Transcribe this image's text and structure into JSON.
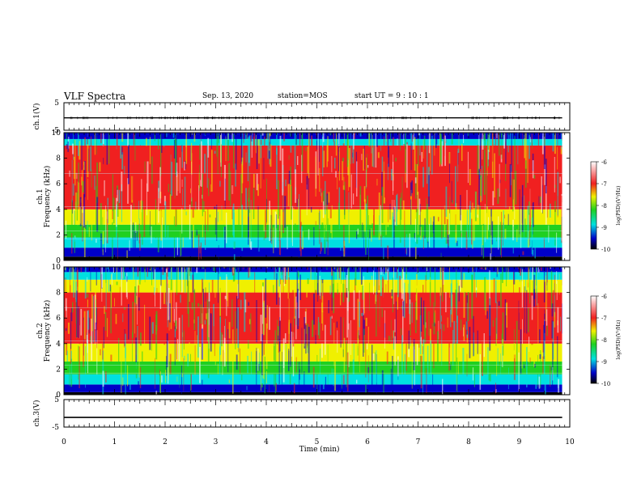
{
  "header": {
    "title": "VLF Spectra",
    "date": "Sep. 13, 2020",
    "station": "station=MOS",
    "start": "start  UT  =   9 : 10 : 1"
  },
  "colorbar_label": "log(PSD)(V²/Hz)",
  "colors": {
    "blue_band": "#0000c8",
    "cyan": "#00e0e0",
    "green": "#20d020",
    "yellow": "#f0f000",
    "red": "#f02020",
    "white": "#ffffff",
    "black": "#000000"
  },
  "chart_data": [
    {
      "type": "line",
      "name": "waveform-ch1",
      "ylabel": "ch.1(V)",
      "ylim": [
        -5,
        5
      ],
      "yticks": [
        -5,
        5
      ],
      "xlim": [
        0,
        10
      ],
      "x": [
        0,
        9.85
      ],
      "y": [
        -0.5,
        -0.5
      ]
    },
    {
      "type": "heatmap",
      "name": "spectrogram-ch1",
      "ylabel": "ch.1\nFrequency (kHz)",
      "ylim": [
        0,
        10
      ],
      "yticks": [
        0,
        2,
        4,
        6,
        8,
        10
      ],
      "xlim": [
        0,
        9.85
      ],
      "bands_khz": [
        [
          0,
          0.3,
          "black"
        ],
        [
          0.3,
          1.0,
          "blue"
        ],
        [
          1.0,
          1.8,
          "cyan"
        ],
        [
          1.8,
          2.8,
          "green"
        ],
        [
          2.8,
          4.0,
          "yellow"
        ],
        [
          4.0,
          9.0,
          "red"
        ],
        [
          9.0,
          9.5,
          "cyan"
        ],
        [
          9.5,
          10.0,
          "blue"
        ]
      ],
      "colorbar": {
        "min": -10,
        "max": -6,
        "ticks": [
          -10,
          -9,
          -8,
          -7,
          -6
        ]
      }
    },
    {
      "type": "heatmap",
      "name": "spectrogram-ch2",
      "ylabel": "ch.2\nFrequency (kHz)",
      "ylim": [
        0,
        10
      ],
      "yticks": [
        0,
        2,
        4,
        6,
        8,
        10
      ],
      "xlim": [
        0,
        9.85
      ],
      "bands_khz": [
        [
          0,
          0.2,
          "black"
        ],
        [
          0.2,
          0.8,
          "blue"
        ],
        [
          0.8,
          1.6,
          "cyan"
        ],
        [
          1.6,
          2.6,
          "green"
        ],
        [
          2.6,
          4.0,
          "yellow"
        ],
        [
          4.0,
          8.0,
          "red"
        ],
        [
          8.0,
          9.0,
          "yellow"
        ],
        [
          9.0,
          9.6,
          "cyan"
        ],
        [
          9.6,
          10.0,
          "blue"
        ]
      ],
      "colorbar": {
        "min": -10,
        "max": -6,
        "ticks": [
          -10,
          -9,
          -8,
          -7,
          -6
        ]
      }
    },
    {
      "type": "line",
      "name": "waveform-ch3",
      "ylabel": "ch.3(V)",
      "ylim": [
        -5,
        5
      ],
      "yticks": [
        -5,
        5
      ],
      "xlim": [
        0,
        10
      ],
      "x": [
        0,
        9.85
      ],
      "y": [
        -1.5,
        -1.5
      ]
    }
  ],
  "x_axis": {
    "label": "Time (min)",
    "ticks": [
      0,
      1,
      2,
      3,
      4,
      5,
      6,
      7,
      8,
      9,
      10
    ],
    "range": [
      0,
      10
    ]
  }
}
